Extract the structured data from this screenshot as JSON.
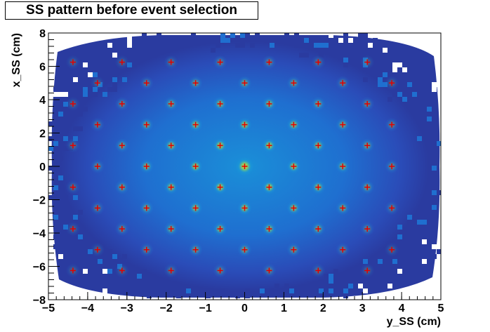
{
  "chart_data": {
    "type": "heatmap",
    "title": "SS pattern before event selection",
    "xlabel": "y_SS (cm)",
    "ylabel": "x_SS (cm)",
    "xlim": [
      -5,
      5
    ],
    "ylim": [
      -8,
      8
    ],
    "x_ticks": [
      -5,
      -4,
      -3,
      -2,
      -1,
      0,
      1,
      2,
      3,
      4,
      5
    ],
    "y_ticks": [
      -8,
      -6,
      -4,
      -2,
      0,
      2,
      4,
      6,
      8
    ],
    "x_tick_labels": [
      "−5",
      "−4",
      "−3",
      "−2",
      "−1",
      "0",
      "1",
      "2",
      "3",
      "4",
      "5"
    ],
    "y_tick_labels": [
      "−8",
      "−6",
      "−4",
      "−2",
      "0",
      "2",
      "4",
      "6",
      "8"
    ],
    "grid": false,
    "colorscale": [
      "#2a3ba0",
      "#1f6fd0",
      "#1aa0d8",
      "#36c0a8",
      "#8fd060",
      "#f5d020"
    ],
    "marker_color": "#e00000",
    "marker_shape": "cross",
    "hotspot_pitch": {
      "dx": 0.625,
      "dy": 1.25
    },
    "hotspots": [
      [
        -4.375,
        6.25
      ],
      [
        -3.125,
        6.25
      ],
      [
        -1.875,
        6.25
      ],
      [
        -0.625,
        6.25
      ],
      [
        0.625,
        6.25
      ],
      [
        1.875,
        6.25
      ],
      [
        3.125,
        6.25
      ],
      [
        -3.75,
        5.0
      ],
      [
        -2.5,
        5.0
      ],
      [
        -1.25,
        5.0
      ],
      [
        0.0,
        5.0
      ],
      [
        1.25,
        5.0
      ],
      [
        2.5,
        5.0
      ],
      [
        3.75,
        5.0
      ],
      [
        -4.375,
        3.75
      ],
      [
        -3.125,
        3.75
      ],
      [
        -1.875,
        3.75
      ],
      [
        -0.625,
        3.75
      ],
      [
        0.625,
        3.75
      ],
      [
        1.875,
        3.75
      ],
      [
        3.125,
        3.75
      ],
      [
        -3.75,
        2.5
      ],
      [
        -2.5,
        2.5
      ],
      [
        -1.25,
        2.5
      ],
      [
        0.0,
        2.5
      ],
      [
        1.25,
        2.5
      ],
      [
        2.5,
        2.5
      ],
      [
        3.75,
        2.5
      ],
      [
        -4.375,
        1.25
      ],
      [
        -3.125,
        1.25
      ],
      [
        -1.875,
        1.25
      ],
      [
        -0.625,
        1.25
      ],
      [
        0.625,
        1.25
      ],
      [
        1.875,
        1.25
      ],
      [
        3.125,
        1.25
      ],
      [
        -3.75,
        0.0
      ],
      [
        -2.5,
        0.0
      ],
      [
        -1.25,
        0.0
      ],
      [
        0.0,
        0.0
      ],
      [
        1.25,
        0.0
      ],
      [
        2.5,
        0.0
      ],
      [
        3.75,
        0.0
      ],
      [
        -4.375,
        -1.25
      ],
      [
        -3.125,
        -1.25
      ],
      [
        -1.875,
        -1.25
      ],
      [
        -0.625,
        -1.25
      ],
      [
        0.625,
        -1.25
      ],
      [
        1.875,
        -1.25
      ],
      [
        3.125,
        -1.25
      ],
      [
        -3.75,
        -2.5
      ],
      [
        -2.5,
        -2.5
      ],
      [
        -1.25,
        -2.5
      ],
      [
        0.0,
        -2.5
      ],
      [
        1.25,
        -2.5
      ],
      [
        2.5,
        -2.5
      ],
      [
        3.75,
        -2.5
      ],
      [
        -4.375,
        -3.75
      ],
      [
        -3.125,
        -3.75
      ],
      [
        -1.875,
        -3.75
      ],
      [
        -0.625,
        -3.75
      ],
      [
        0.625,
        -3.75
      ],
      [
        1.875,
        -3.75
      ],
      [
        3.125,
        -3.75
      ],
      [
        -3.75,
        -5.0
      ],
      [
        -2.5,
        -5.0
      ],
      [
        -1.25,
        -5.0
      ],
      [
        0.0,
        -5.0
      ],
      [
        1.25,
        -5.0
      ],
      [
        2.5,
        -5.0
      ],
      [
        3.75,
        -5.0
      ],
      [
        -4.375,
        -6.25
      ],
      [
        -3.125,
        -6.25
      ],
      [
        -1.875,
        -6.25
      ],
      [
        -0.625,
        -6.25
      ],
      [
        0.625,
        -6.25
      ],
      [
        1.875,
        -6.25
      ],
      [
        3.125,
        -6.25
      ]
    ]
  }
}
